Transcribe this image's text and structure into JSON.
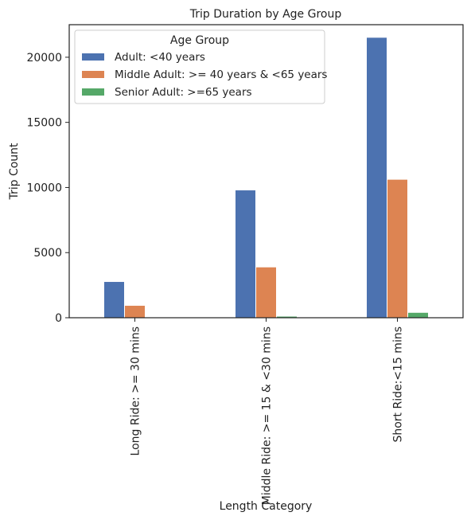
{
  "chart_data": {
    "type": "bar",
    "title": "Trip Duration by Age Group",
    "xlabel": "Length Category",
    "ylabel": "Trip Count",
    "categories": [
      "Long Ride: >= 30 mins",
      "Middle Ride: >= 15 & <30 mins",
      "Short Ride:<15 mins"
    ],
    "series": [
      {
        "name": "Adult: <40 years",
        "color": "#4c72b0",
        "values": [
          2750,
          9780,
          21500
        ]
      },
      {
        "name": "Middle Adult: >= 40 years & <65 years",
        "color": "#dd8452",
        "values": [
          920,
          3870,
          10600
        ]
      },
      {
        "name": "Senior Adult: >=65 years",
        "color": "#55a868",
        "values": [
          30,
          90,
          380
        ]
      }
    ],
    "ylim": [
      0,
      22500
    ],
    "yticks": [
      0,
      5000,
      10000,
      15000,
      20000
    ],
    "legend": {
      "title": "Age Group",
      "placement": "top-left"
    },
    "grid": false
  }
}
